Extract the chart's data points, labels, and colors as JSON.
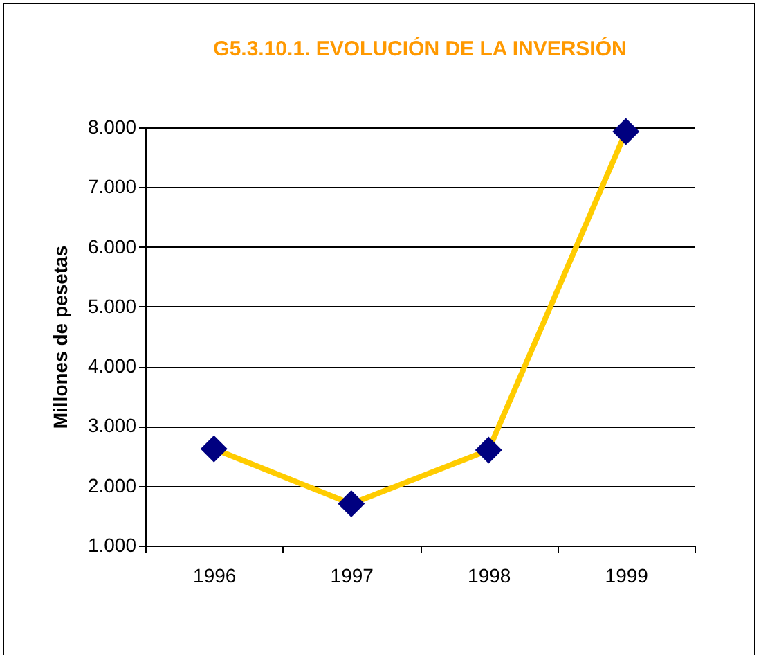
{
  "chart_data": {
    "type": "line",
    "title": "G5.3.10.1. EVOLUCIÓN DE LA INVERSIÓN",
    "ylabel": "Millones de pesetas",
    "categories": [
      "1996",
      "1997",
      "1998",
      "1999"
    ],
    "series": [
      {
        "color": "#ffcc00",
        "colors": [
          "#000080",
          "#000080",
          "#000080",
          "#000080"
        ],
        "values": [
          2620,
          1700,
          2600,
          7930
        ]
      }
    ],
    "ylim": [
      1000,
      8000
    ],
    "yticks": [
      {
        "value": 1000,
        "label": "1.000"
      },
      {
        "value": 2000,
        "label": "2.000"
      },
      {
        "value": 3000,
        "label": "3.000"
      },
      {
        "value": 4000,
        "label": "4.000"
      },
      {
        "value": 5000,
        "label": "5.000"
      },
      {
        "value": 6000,
        "label": "6.000"
      },
      {
        "value": 7000,
        "label": "7.000"
      },
      {
        "value": 8000,
        "label": "8.000"
      }
    ],
    "grid": "y",
    "marker": "diamond",
    "line_style": "solid"
  }
}
